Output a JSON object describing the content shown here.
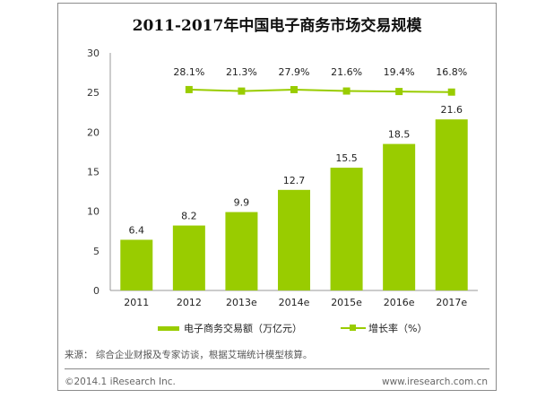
{
  "chart_data": {
    "type": "bar+line",
    "title": "2011-2017年中国电子商务市场交易规模",
    "categories": [
      "2011",
      "2012",
      "2013e",
      "2014e",
      "2015e",
      "2016e",
      "2017e"
    ],
    "ylim": [
      0,
      30
    ],
    "yticks": [
      "0",
      "5",
      "10",
      "15",
      "20",
      "25",
      "30"
    ],
    "series": [
      {
        "name": "电子商务交易额（万亿元）",
        "type": "bar",
        "values": [
          6.4,
          8.2,
          9.9,
          12.7,
          15.5,
          18.5,
          21.6
        ],
        "labels": [
          "6.4",
          "8.2",
          "9.9",
          "12.7",
          "15.5",
          "18.5",
          "21.6"
        ]
      },
      {
        "name": "增长率（%）",
        "type": "line",
        "values": [
          null,
          28.1,
          21.3,
          27.9,
          21.6,
          19.4,
          16.8
        ],
        "labels": [
          "",
          "28.1%",
          "21.3%",
          "27.9%",
          "21.6%",
          "19.4%",
          "16.8%"
        ]
      }
    ],
    "colors": {
      "bar": "#99CC00",
      "line": "#99CC00"
    },
    "legend": "bottom",
    "grid": false
  },
  "footer": {
    "source": "来源：  综合企业财报及专家访谈，根据艾瑞统计模型核算。",
    "copyright": "©2014.1 iResearch Inc.",
    "website": "www.iresearch.com.cn"
  }
}
